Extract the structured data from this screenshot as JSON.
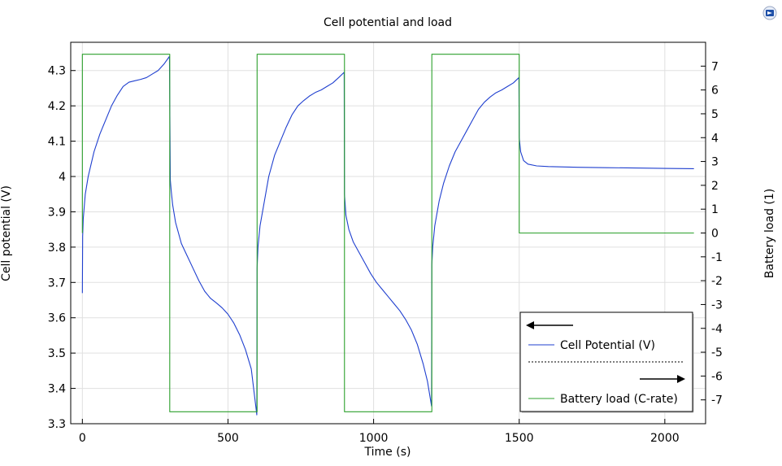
{
  "chart_data": {
    "type": "line",
    "title": "Cell potential and load",
    "xlabel": "Time (s)",
    "ylabel_left": "Cell potential (V)",
    "ylabel_right": "Battery load (1)",
    "xlim": [
      -40,
      2140
    ],
    "ylim_left": [
      3.3,
      4.38
    ],
    "ylim_right": [
      -8.0,
      8.0
    ],
    "x_ticks": [
      0,
      500,
      1000,
      1500,
      2000
    ],
    "y_ticks_left": [
      3.3,
      3.4,
      3.5,
      3.6,
      3.7,
      3.8,
      3.9,
      4,
      4.1,
      4.2,
      4.3
    ],
    "y_ticks_right": [
      -7,
      -6,
      -5,
      -4,
      -3,
      -2,
      -1,
      0,
      1,
      2,
      3,
      4,
      5,
      6,
      7
    ],
    "grid": true,
    "legend_position": "bottom-right",
    "series": [
      {
        "name": "Cell Potential (V)",
        "axis": "left",
        "color": "#1f3fcf",
        "points": [
          [
            0,
            3.67
          ],
          [
            1,
            3.83
          ],
          [
            3,
            3.88
          ],
          [
            10,
            3.95
          ],
          [
            20,
            4.0
          ],
          [
            40,
            4.07
          ],
          [
            60,
            4.12
          ],
          [
            80,
            4.16
          ],
          [
            100,
            4.2
          ],
          [
            120,
            4.23
          ],
          [
            140,
            4.255
          ],
          [
            160,
            4.267
          ],
          [
            180,
            4.271
          ],
          [
            200,
            4.275
          ],
          [
            220,
            4.28
          ],
          [
            240,
            4.29
          ],
          [
            260,
            4.3
          ],
          [
            280,
            4.318
          ],
          [
            299,
            4.34
          ],
          [
            300,
            4.22
          ],
          [
            302,
            3.99
          ],
          [
            305,
            3.96
          ],
          [
            310,
            3.92
          ],
          [
            320,
            3.87
          ],
          [
            340,
            3.81
          ],
          [
            360,
            3.775
          ],
          [
            380,
            3.74
          ],
          [
            400,
            3.705
          ],
          [
            420,
            3.675
          ],
          [
            440,
            3.655
          ],
          [
            460,
            3.642
          ],
          [
            480,
            3.628
          ],
          [
            500,
            3.61
          ],
          [
            520,
            3.585
          ],
          [
            540,
            3.552
          ],
          [
            560,
            3.51
          ],
          [
            580,
            3.455
          ],
          [
            599,
            3.325
          ],
          [
            600,
            3.74
          ],
          [
            603,
            3.8
          ],
          [
            610,
            3.86
          ],
          [
            625,
            3.93
          ],
          [
            640,
            4.0
          ],
          [
            660,
            4.06
          ],
          [
            680,
            4.1
          ],
          [
            700,
            4.14
          ],
          [
            720,
            4.175
          ],
          [
            740,
            4.2
          ],
          [
            760,
            4.215
          ],
          [
            780,
            4.228
          ],
          [
            800,
            4.238
          ],
          [
            820,
            4.245
          ],
          [
            840,
            4.255
          ],
          [
            860,
            4.265
          ],
          [
            880,
            4.28
          ],
          [
            899,
            4.295
          ],
          [
            900,
            3.95
          ],
          [
            905,
            3.89
          ],
          [
            915,
            3.85
          ],
          [
            930,
            3.815
          ],
          [
            950,
            3.785
          ],
          [
            970,
            3.755
          ],
          [
            990,
            3.725
          ],
          [
            1010,
            3.7
          ],
          [
            1030,
            3.68
          ],
          [
            1050,
            3.66
          ],
          [
            1070,
            3.64
          ],
          [
            1090,
            3.62
          ],
          [
            1110,
            3.595
          ],
          [
            1130,
            3.565
          ],
          [
            1150,
            3.525
          ],
          [
            1170,
            3.47
          ],
          [
            1185,
            3.42
          ],
          [
            1199,
            3.35
          ],
          [
            1200,
            3.75
          ],
          [
            1203,
            3.8
          ],
          [
            1210,
            3.86
          ],
          [
            1225,
            3.93
          ],
          [
            1240,
            3.98
          ],
          [
            1260,
            4.03
          ],
          [
            1280,
            4.07
          ],
          [
            1300,
            4.1
          ],
          [
            1320,
            4.13
          ],
          [
            1340,
            4.16
          ],
          [
            1360,
            4.19
          ],
          [
            1380,
            4.21
          ],
          [
            1400,
            4.225
          ],
          [
            1420,
            4.237
          ],
          [
            1440,
            4.245
          ],
          [
            1460,
            4.255
          ],
          [
            1480,
            4.265
          ],
          [
            1499,
            4.28
          ],
          [
            1500,
            4.11
          ],
          [
            1505,
            4.07
          ],
          [
            1515,
            4.045
          ],
          [
            1530,
            4.035
          ],
          [
            1560,
            4.03
          ],
          [
            1600,
            4.028
          ],
          [
            1700,
            4.026
          ],
          [
            1800,
            4.025
          ],
          [
            1900,
            4.024
          ],
          [
            2000,
            4.023
          ],
          [
            2100,
            4.022
          ]
        ]
      },
      {
        "name": "Battery load (C-rate)",
        "axis": "right",
        "color": "#2ca02c",
        "points": [
          [
            0,
            0
          ],
          [
            0,
            7.5
          ],
          [
            300,
            7.5
          ],
          [
            300,
            -7.5
          ],
          [
            600,
            -7.5
          ],
          [
            600,
            7.5
          ],
          [
            900,
            7.5
          ],
          [
            900,
            -7.5
          ],
          [
            1200,
            -7.5
          ],
          [
            1200,
            7.5
          ],
          [
            1500,
            7.5
          ],
          [
            1500,
            0
          ],
          [
            2100,
            0
          ]
        ]
      }
    ]
  }
}
